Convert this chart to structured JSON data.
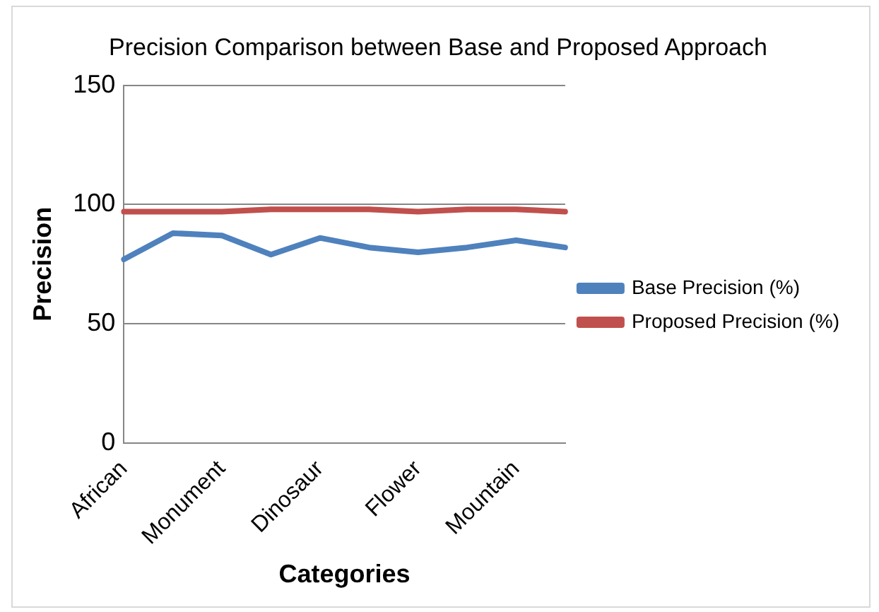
{
  "chart_data": {
    "type": "line",
    "title": "Precision Comparison between Base and Proposed Approach",
    "xlabel": "Categories",
    "ylabel": "Precision",
    "categories": [
      "African",
      null,
      "Monument",
      null,
      "Dinosaur",
      null,
      "Flower",
      null,
      "Mountain",
      null
    ],
    "series": [
      {
        "name": "Base Precision (%)",
        "color": "#4f81bd",
        "values": [
          77,
          88,
          87,
          79,
          86,
          82,
          80,
          82,
          85,
          82
        ]
      },
      {
        "name": "Proposed Precision (%)",
        "color": "#c0504d",
        "values": [
          97,
          97,
          97,
          98,
          98,
          98,
          97,
          98,
          98,
          97
        ]
      }
    ],
    "ylim": [
      0,
      150
    ],
    "yticks": [
      0,
      50,
      100,
      150
    ],
    "grid": "y",
    "legend": "right",
    "marker": "none",
    "line_style": "solid"
  }
}
